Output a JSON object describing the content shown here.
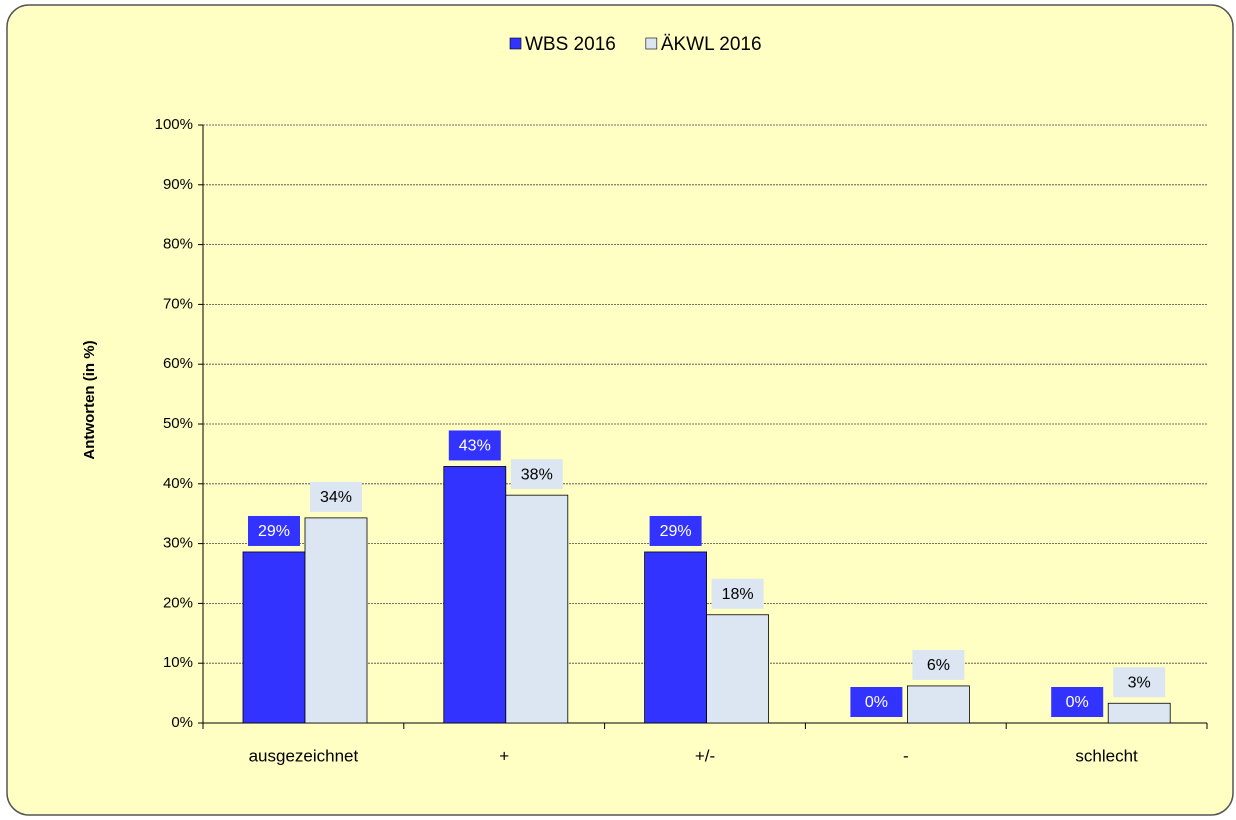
{
  "chart_data": {
    "type": "bar",
    "categories": [
      "ausgezeichnet",
      "+",
      "+/-",
      "-",
      "schlecht"
    ],
    "series": [
      {
        "name": "WBS 2016",
        "color": "#3333ff",
        "values": [
          28.6,
          42.9,
          28.6,
          0,
          0
        ],
        "value_labels": [
          "29%",
          "43%",
          "29%",
          "0%",
          "0%"
        ]
      },
      {
        "name": "ÄKWL 2016",
        "color": "#dce6f2",
        "values": [
          34.3,
          38.1,
          18.1,
          6.2,
          3.3
        ],
        "value_labels": [
          "34%",
          "38%",
          "18%",
          "6%",
          "3%"
        ]
      }
    ],
    "y_label": "Antworten (in %)",
    "ylim": [
      0,
      100
    ],
    "yticks": [
      {
        "value": 0,
        "label": "0%"
      },
      {
        "value": 10,
        "label": "10%"
      },
      {
        "value": 20,
        "label": "20%"
      },
      {
        "value": 30,
        "label": "30%"
      },
      {
        "value": 40,
        "label": "40%"
      },
      {
        "value": 50,
        "label": "50%"
      },
      {
        "value": 60,
        "label": "60%"
      },
      {
        "value": 70,
        "label": "70%"
      },
      {
        "value": 80,
        "label": "80%"
      },
      {
        "value": 90,
        "label": "90%"
      },
      {
        "value": 100,
        "label": "100%"
      }
    ],
    "grid": true,
    "legend": "top"
  }
}
